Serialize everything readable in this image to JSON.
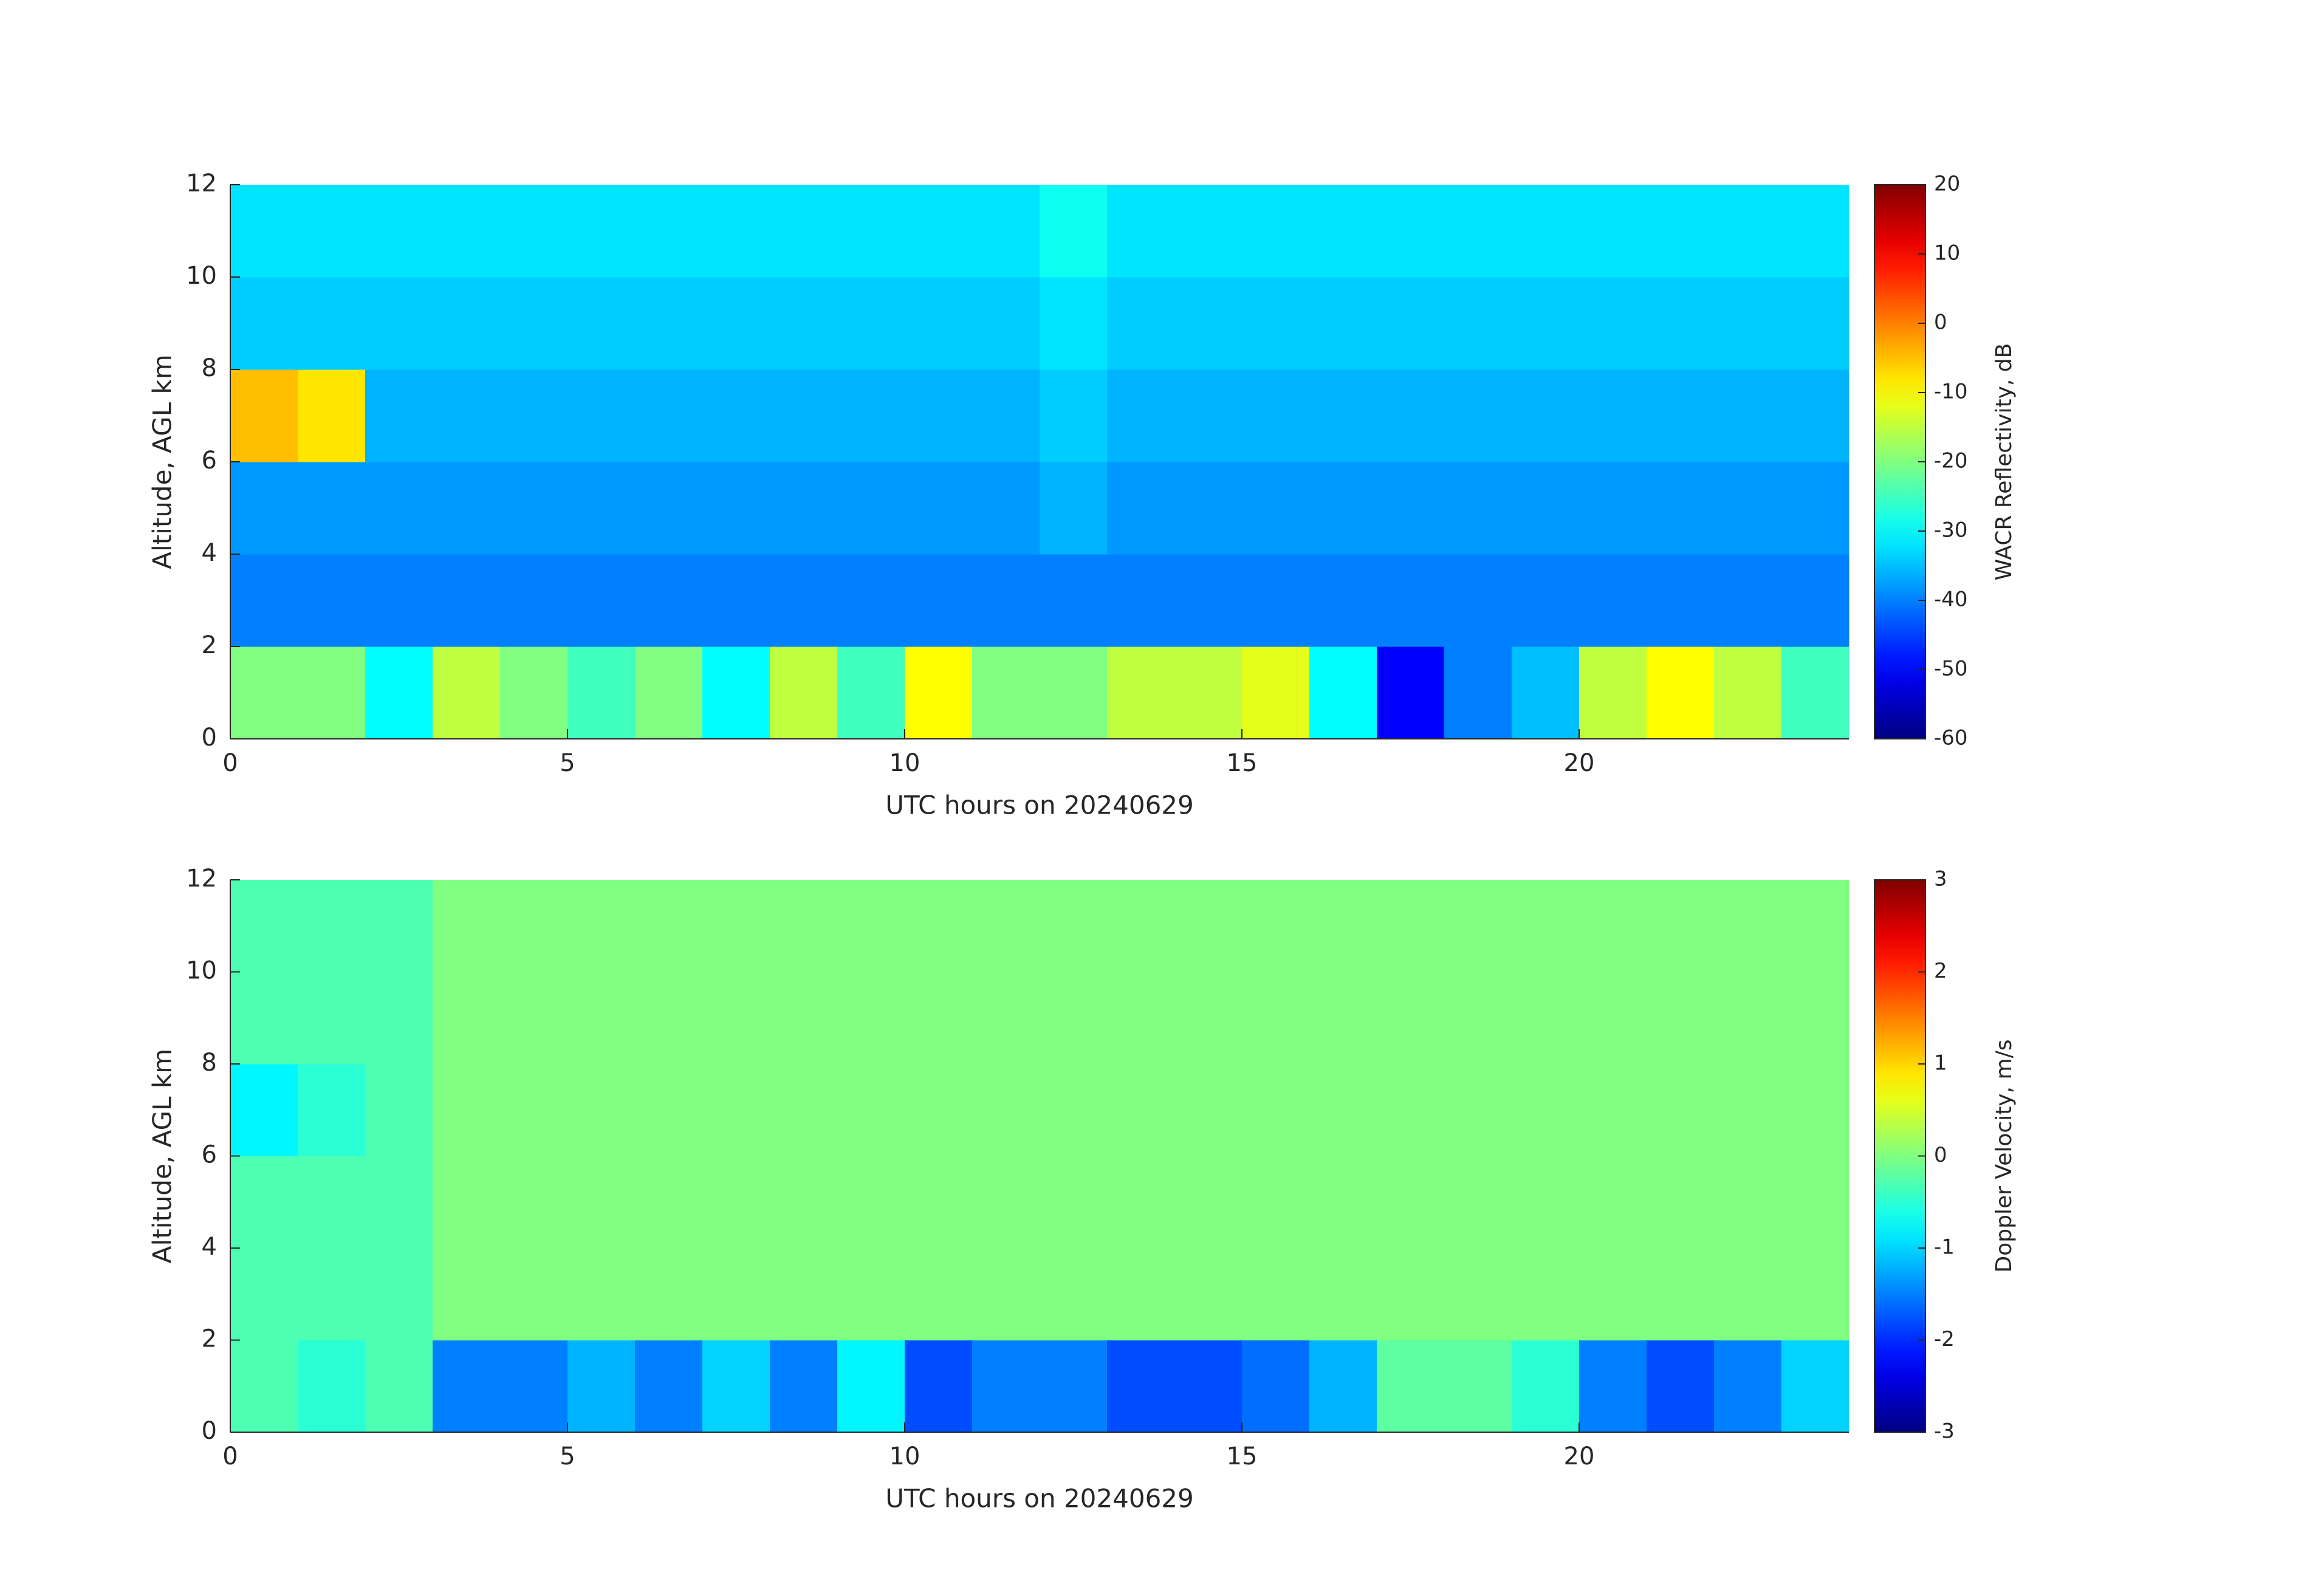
{
  "chart_data": [
    {
      "type": "heatmap",
      "xlabel": "UTC hours on 20240629",
      "ylabel": "Altitude, AGL km",
      "colorbar_label": "WACR Reflectivity, dB",
      "colormap": "jet",
      "clim": [
        -60,
        20
      ],
      "cticks": [
        -60,
        -50,
        -40,
        -30,
        -20,
        -10,
        0,
        10,
        20
      ],
      "xlim": [
        0,
        24
      ],
      "ylim": [
        0,
        12
      ],
      "xticks": [
        0,
        5,
        10,
        15,
        20
      ],
      "yticks": [
        0,
        2,
        4,
        6,
        8,
        10,
        12
      ],
      "xbins": [
        0,
        1,
        2,
        3,
        4,
        5,
        6,
        7,
        8,
        9,
        10,
        11,
        12,
        13,
        14,
        15,
        16,
        17,
        18,
        19,
        20,
        21,
        22,
        23,
        24
      ],
      "ybins": [
        0,
        2,
        4,
        6,
        8,
        10,
        12
      ],
      "values": [
        [
          -20,
          -20,
          -30,
          -15,
          -20,
          -25,
          -20,
          -30,
          -15,
          -25,
          -10,
          -20,
          -20,
          -15,
          -15,
          -12,
          -30,
          -50,
          -40,
          -35,
          -15,
          -10,
          -15,
          -25
        ],
        [
          -40,
          -40,
          -40,
          -40,
          -40,
          -40,
          -40,
          -40,
          -40,
          -40,
          -40,
          -40,
          -40,
          -40,
          -40,
          -40,
          -40,
          -40,
          -40,
          -40,
          -40,
          -40,
          -40,
          -40
        ],
        [
          -38,
          -38,
          -38,
          -38,
          -38,
          -38,
          -38,
          -38,
          -38,
          -38,
          -38,
          -38,
          -36,
          -38,
          -38,
          -38,
          -38,
          -38,
          -38,
          -38,
          -38,
          -38,
          -38,
          -38
        ],
        [
          -5,
          -8,
          -36,
          -36,
          -36,
          -36,
          -36,
          -36,
          -36,
          -36,
          -36,
          -36,
          -34,
          -36,
          -36,
          -36,
          -36,
          -36,
          -36,
          -36,
          -36,
          -36,
          -36,
          -36
        ],
        [
          -34,
          -34,
          -34,
          -34,
          -34,
          -34,
          -34,
          -34,
          -34,
          -34,
          -34,
          -34,
          -32,
          -34,
          -34,
          -34,
          -34,
          -34,
          -34,
          -34,
          -34,
          -34,
          -34,
          -34
        ],
        [
          -32,
          -32,
          -32,
          -32,
          -32,
          -32,
          -32,
          -32,
          -32,
          -32,
          -32,
          -32,
          -29,
          -32,
          -32,
          -32,
          -32,
          -32,
          -32,
          -32,
          -32,
          -32,
          -32,
          -32
        ]
      ]
    },
    {
      "type": "heatmap",
      "xlabel": "UTC hours on 20240629",
      "ylabel": "Altitude, AGL km",
      "colorbar_label": "Doppler Velocity, m/s",
      "colormap": "jet",
      "clim": [
        -3,
        3
      ],
      "cticks": [
        -3,
        -2,
        -1,
        0,
        1,
        2,
        3
      ],
      "xlim": [
        0,
        24
      ],
      "ylim": [
        0,
        12
      ],
      "xticks": [
        0,
        5,
        10,
        15,
        20
      ],
      "yticks": [
        0,
        2,
        4,
        6,
        8,
        10,
        12
      ],
      "xbins": [
        0,
        1,
        2,
        3,
        4,
        5,
        6,
        7,
        8,
        9,
        10,
        11,
        12,
        13,
        14,
        15,
        16,
        17,
        18,
        19,
        20,
        21,
        22,
        23,
        24
      ],
      "ybins": [
        0,
        2,
        4,
        6,
        8,
        10,
        12
      ],
      "values": [
        [
          -0.3,
          -0.5,
          -0.3,
          -1.5,
          -1.5,
          -1.2,
          -1.5,
          -1.0,
          -1.5,
          -0.8,
          -1.8,
          -1.5,
          -1.5,
          -1.8,
          -1.8,
          -1.6,
          -1.2,
          -0.2,
          -0.2,
          -0.5,
          -1.5,
          -1.8,
          -1.5,
          -1.0
        ],
        [
          -0.3,
          -0.3,
          -0.3,
          0,
          0,
          0,
          0,
          0,
          0,
          0,
          0,
          0,
          0,
          0,
          0,
          0,
          0,
          0,
          0,
          0,
          0,
          0,
          0,
          0
        ],
        [
          -0.3,
          -0.3,
          -0.3,
          0,
          0,
          0,
          0,
          0,
          0,
          0,
          0,
          0,
          0,
          0,
          0,
          0,
          0,
          0,
          0,
          0,
          0,
          0,
          0,
          0
        ],
        [
          -0.8,
          -0.5,
          -0.3,
          0,
          0,
          0,
          0,
          0,
          0,
          0,
          0,
          0,
          0,
          0,
          0,
          0,
          0,
          0,
          0,
          0,
          0,
          0,
          0,
          0
        ],
        [
          -0.3,
          -0.3,
          -0.3,
          0,
          0,
          0,
          0,
          0,
          0,
          0,
          0,
          0,
          0,
          0,
          0,
          0,
          0,
          0,
          0,
          0,
          0,
          0,
          0,
          0
        ],
        [
          -0.3,
          -0.3,
          -0.3,
          0,
          0,
          0,
          0,
          0,
          0,
          0,
          0,
          0,
          0,
          0,
          0,
          0,
          0,
          0,
          0,
          0,
          0,
          0,
          0,
          0
        ]
      ]
    }
  ]
}
